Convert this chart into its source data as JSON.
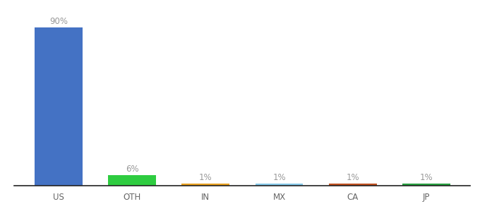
{
  "categories": [
    "US",
    "OTH",
    "IN",
    "MX",
    "CA",
    "JP"
  ],
  "values": [
    90,
    6,
    1,
    1,
    1,
    1
  ],
  "labels": [
    "90%",
    "6%",
    "1%",
    "1%",
    "1%",
    "1%"
  ],
  "bar_colors": [
    "#4472C4",
    "#3CB043",
    "#F5A623",
    "#7BC8F0",
    "#C0622B",
    "#3CB043"
  ],
  "bar_colors_exact": [
    "#4472C4",
    "#2ECC40",
    "#E8A020",
    "#85C8E8",
    "#C05020",
    "#28A040"
  ],
  "background_color": "#ffffff",
  "ylim": [
    0,
    97
  ],
  "label_fontsize": 8.5,
  "tick_fontsize": 8.5,
  "label_color": "#999999",
  "tick_color": "#666666"
}
